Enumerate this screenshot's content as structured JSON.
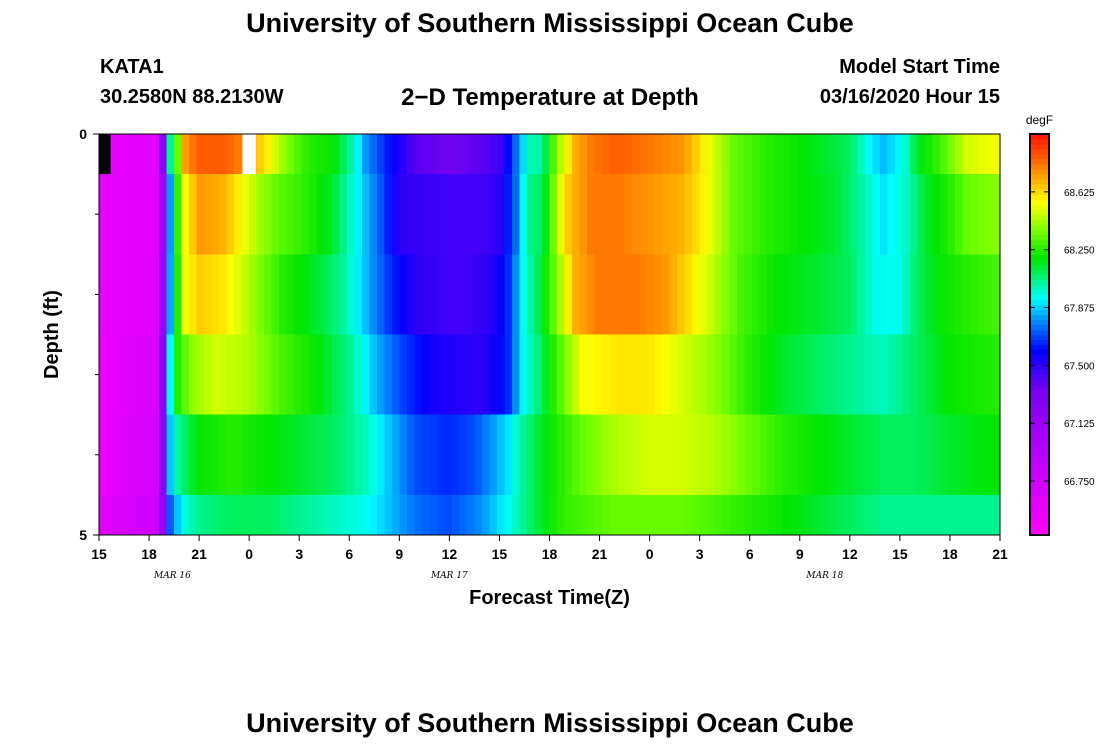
{
  "header": {
    "title": "University of Southern Mississippi Ocean Cube",
    "station": "KATA1",
    "location": "30.2580N 88.2130W",
    "subtitle": "2−D Temperature at Depth",
    "model_start_label": "Model Start Time",
    "model_start_value": "03/16/2020 Hour 15"
  },
  "footer": {
    "title": "University of Southern Mississippi Ocean Cube"
  },
  "chart_data": {
    "type": "heatmap",
    "title": "2−D Temperature at Depth",
    "xlabel": "Forecast Time(Z)",
    "ylabel": "Depth (ft)",
    "x_start_hour": 15,
    "x_end_hour": 69,
    "x_tick_labels": [
      "15",
      "18",
      "21",
      "0",
      "3",
      "6",
      "9",
      "12",
      "15",
      "18",
      "21",
      "0",
      "3",
      "6",
      "9",
      "12",
      "15",
      "18",
      "21"
    ],
    "date_labels": [
      {
        "text": "MAR  16",
        "hour": 19.4
      },
      {
        "text": "MAR  17",
        "hour": 36
      },
      {
        "text": "MAR  18",
        "hour": 58.5
      }
    ],
    "y_tick_labels": [
      "0",
      "5"
    ],
    "ylim": [
      0,
      5
    ],
    "y_minor_ticks": [
      1,
      2,
      3,
      4
    ],
    "colorbar": {
      "unit": "degF",
      "min": 66.4,
      "max": 69.0,
      "tick_labels": [
        "68.625",
        "68.250",
        "67.875",
        "67.500",
        "67.125",
        "66.750"
      ],
      "tick_values": [
        68.625,
        68.25,
        67.875,
        67.5,
        67.125,
        66.75
      ]
    },
    "depth_layers": [
      {
        "depth_ft": [
          0.0,
          0.5
        ],
        "points": [
          [
            15,
            66.55
          ],
          [
            18.6,
            66.65
          ],
          [
            18.9,
            67.4
          ],
          [
            19.2,
            68.0
          ],
          [
            19.6,
            68.25
          ],
          [
            20.2,
            68.75
          ],
          [
            21,
            68.85
          ],
          [
            22.5,
            68.85
          ],
          [
            24,
            68.75
          ],
          [
            25,
            68.6
          ],
          [
            26.2,
            68.4
          ],
          [
            27.5,
            68.25
          ],
          [
            29,
            68.2
          ],
          [
            30,
            68.05
          ],
          [
            31,
            67.8
          ],
          [
            32.5,
            67.6
          ],
          [
            34,
            67.4
          ],
          [
            36,
            67.35
          ],
          [
            38,
            67.4
          ],
          [
            39,
            67.45
          ],
          [
            40,
            67.75
          ],
          [
            40.6,
            67.95
          ],
          [
            41,
            68.05
          ],
          [
            41.5,
            68.0
          ],
          [
            42.2,
            68.3
          ],
          [
            42.8,
            68.5
          ],
          [
            43.5,
            68.7
          ],
          [
            44.5,
            68.8
          ],
          [
            46,
            68.85
          ],
          [
            48,
            68.8
          ],
          [
            50,
            68.75
          ],
          [
            51.5,
            68.55
          ],
          [
            53,
            68.35
          ],
          [
            55,
            68.25
          ],
          [
            57,
            68.2
          ],
          [
            58.5,
            68.15
          ],
          [
            60,
            68.1
          ],
          [
            61,
            67.95
          ],
          [
            62,
            67.85
          ],
          [
            63.2,
            67.95
          ],
          [
            64,
            68.15
          ],
          [
            65.5,
            68.3
          ],
          [
            67,
            68.5
          ],
          [
            69,
            68.55
          ]
        ]
      },
      {
        "depth_ft": [
          0.5,
          1.5
        ],
        "points": [
          [
            15,
            66.55
          ],
          [
            18.6,
            66.65
          ],
          [
            19.0,
            67.4
          ],
          [
            19.4,
            68.0
          ],
          [
            20,
            68.5
          ],
          [
            21,
            68.75
          ],
          [
            22.5,
            68.7
          ],
          [
            24,
            68.5
          ],
          [
            25.5,
            68.35
          ],
          [
            27.5,
            68.25
          ],
          [
            29,
            68.15
          ],
          [
            30,
            68.0
          ],
          [
            31,
            67.85
          ],
          [
            32,
            67.7
          ],
          [
            33,
            67.5
          ],
          [
            36,
            67.45
          ],
          [
            38,
            67.45
          ],
          [
            39,
            67.5
          ],
          [
            40,
            67.75
          ],
          [
            40.7,
            68.05
          ],
          [
            41.6,
            68.1
          ],
          [
            42.2,
            68.35
          ],
          [
            43,
            68.65
          ],
          [
            44.5,
            68.8
          ],
          [
            46,
            68.8
          ],
          [
            48,
            68.75
          ],
          [
            50,
            68.7
          ],
          [
            51.5,
            68.55
          ],
          [
            53,
            68.35
          ],
          [
            55,
            68.25
          ],
          [
            57,
            68.2
          ],
          [
            59,
            68.15
          ],
          [
            60.5,
            68.05
          ],
          [
            62,
            67.9
          ],
          [
            63.5,
            68.0
          ],
          [
            64.5,
            68.15
          ],
          [
            66,
            68.25
          ],
          [
            67,
            68.35
          ],
          [
            69,
            68.4
          ]
        ]
      },
      {
        "depth_ft": [
          1.5,
          2.5
        ],
        "points": [
          [
            15,
            66.55
          ],
          [
            18.6,
            66.65
          ],
          [
            19.0,
            67.5
          ],
          [
            19.5,
            68.1
          ],
          [
            20.2,
            68.55
          ],
          [
            21,
            68.65
          ],
          [
            22.5,
            68.6
          ],
          [
            24,
            68.45
          ],
          [
            26,
            68.25
          ],
          [
            28,
            68.15
          ],
          [
            29.5,
            68.05
          ],
          [
            31,
            67.85
          ],
          [
            32.5,
            67.65
          ],
          [
            34,
            67.5
          ],
          [
            36.5,
            67.45
          ],
          [
            38.5,
            67.5
          ],
          [
            39.5,
            67.65
          ],
          [
            40.5,
            67.95
          ],
          [
            41.5,
            68.15
          ],
          [
            42.5,
            68.4
          ],
          [
            43.5,
            68.7
          ],
          [
            45,
            68.8
          ],
          [
            47,
            68.8
          ],
          [
            49,
            68.75
          ],
          [
            50.5,
            68.6
          ],
          [
            52,
            68.45
          ],
          [
            53.5,
            68.3
          ],
          [
            55.5,
            68.2
          ],
          [
            58,
            68.15
          ],
          [
            60,
            68.1
          ],
          [
            61.5,
            67.95
          ],
          [
            63,
            67.95
          ],
          [
            64,
            68.1
          ],
          [
            65.5,
            68.2
          ],
          [
            67,
            68.25
          ],
          [
            69,
            68.3
          ]
        ]
      },
      {
        "depth_ft": [
          2.5,
          3.5
        ],
        "points": [
          [
            15,
            66.55
          ],
          [
            18.6,
            66.7
          ],
          [
            19.0,
            67.6
          ],
          [
            19.5,
            68.2
          ],
          [
            20.5,
            68.4
          ],
          [
            22,
            68.5
          ],
          [
            24,
            68.45
          ],
          [
            26,
            68.3
          ],
          [
            28,
            68.2
          ],
          [
            30,
            68.05
          ],
          [
            31.5,
            67.85
          ],
          [
            33,
            67.7
          ],
          [
            35,
            67.55
          ],
          [
            38,
            67.5
          ],
          [
            39.5,
            67.65
          ],
          [
            40.5,
            67.95
          ],
          [
            41.5,
            68.1
          ],
          [
            42.5,
            68.3
          ],
          [
            44,
            68.55
          ],
          [
            46,
            68.6
          ],
          [
            48,
            68.6
          ],
          [
            50,
            68.5
          ],
          [
            52,
            68.4
          ],
          [
            54,
            68.25
          ],
          [
            56,
            68.15
          ],
          [
            58,
            68.1
          ],
          [
            60,
            68.05
          ],
          [
            62,
            68.0
          ],
          [
            64,
            68.1
          ],
          [
            66,
            68.2
          ],
          [
            69,
            68.25
          ]
        ]
      },
      {
        "depth_ft": [
          3.5,
          4.5
        ],
        "points": [
          [
            15,
            66.55
          ],
          [
            18.6,
            66.75
          ],
          [
            19.1,
            67.8
          ],
          [
            19.8,
            68.05
          ],
          [
            21,
            68.2
          ],
          [
            23,
            68.25
          ],
          [
            25,
            68.2
          ],
          [
            27,
            68.15
          ],
          [
            29,
            68.1
          ],
          [
            31,
            68.0
          ],
          [
            32.5,
            67.85
          ],
          [
            34,
            67.7
          ],
          [
            36,
            67.65
          ],
          [
            37.5,
            67.7
          ],
          [
            38.5,
            67.8
          ],
          [
            39.5,
            67.9
          ],
          [
            40.5,
            68.05
          ],
          [
            42,
            68.2
          ],
          [
            44,
            68.35
          ],
          [
            46,
            68.45
          ],
          [
            48,
            68.5
          ],
          [
            50,
            68.5
          ],
          [
            52,
            68.45
          ],
          [
            54,
            68.35
          ],
          [
            56,
            68.25
          ],
          [
            58,
            68.2
          ],
          [
            60,
            68.15
          ],
          [
            62,
            68.1
          ],
          [
            64,
            68.1
          ],
          [
            66,
            68.15
          ],
          [
            69,
            68.2
          ]
        ]
      },
      {
        "depth_ft": [
          4.5,
          5.0
        ],
        "points": [
          [
            15,
            66.6
          ],
          [
            18.6,
            66.8
          ],
          [
            19.2,
            67.7
          ],
          [
            20,
            67.95
          ],
          [
            21,
            68.05
          ],
          [
            23,
            68.1
          ],
          [
            25,
            68.1
          ],
          [
            27,
            68.05
          ],
          [
            29,
            68.0
          ],
          [
            31,
            67.95
          ],
          [
            32.5,
            67.85
          ],
          [
            34,
            67.75
          ],
          [
            36,
            67.7
          ],
          [
            38,
            67.8
          ],
          [
            39.5,
            67.95
          ],
          [
            41,
            68.1
          ],
          [
            42.5,
            68.25
          ],
          [
            44,
            68.3
          ],
          [
            46,
            68.35
          ],
          [
            48,
            68.35
          ],
          [
            50,
            68.35
          ],
          [
            52,
            68.3
          ],
          [
            54,
            68.25
          ],
          [
            56,
            68.2
          ],
          [
            58,
            68.15
          ],
          [
            60,
            68.1
          ],
          [
            62,
            68.05
          ],
          [
            64,
            68.05
          ],
          [
            66,
            68.05
          ],
          [
            69,
            68.05
          ]
        ]
      }
    ],
    "missing_cells": [
      {
        "hour_start": 23.6,
        "hour_end": 24.4,
        "depth_ft": [
          0.0,
          0.5
        ]
      }
    ],
    "leading_black_cell": {
      "hour_start": 15,
      "hour_end": 15.7,
      "depth_ft": [
        0.0,
        0.5
      ]
    }
  }
}
